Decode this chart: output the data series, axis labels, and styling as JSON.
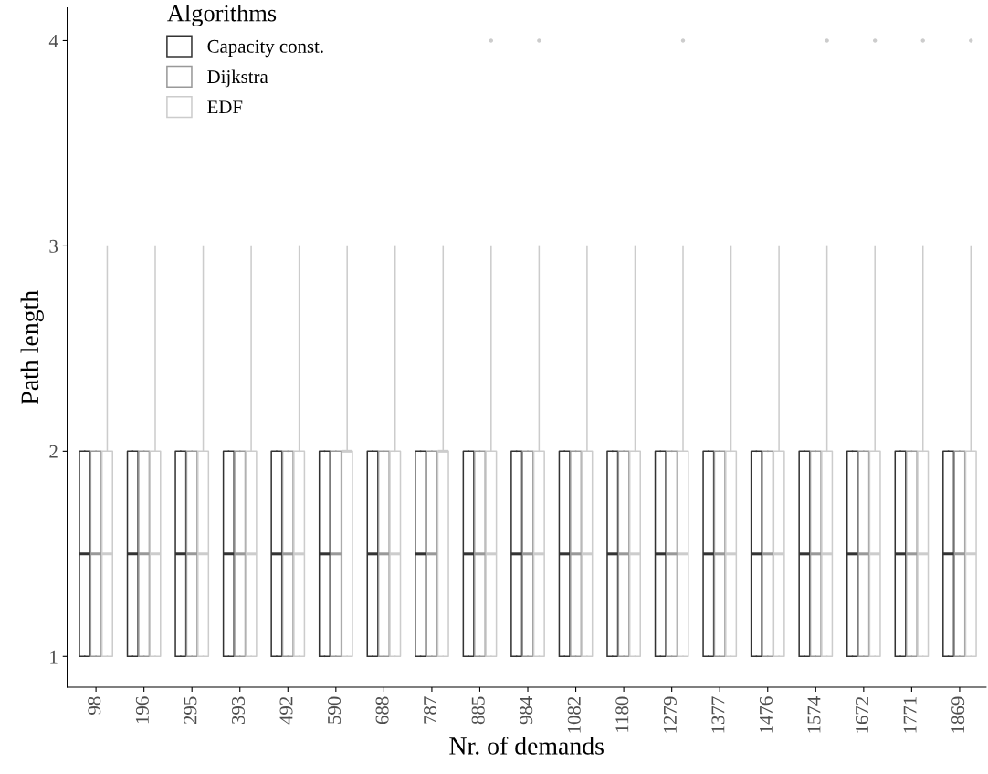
{
  "chart_data": {
    "type": "box",
    "xlabel": "Nr. of demands",
    "ylabel": "Path length",
    "legend_title": "Algorithms",
    "legend": "top left",
    "grid": false,
    "categories": [
      "98",
      "196",
      "295",
      "393",
      "492",
      "590",
      "688",
      "787",
      "885",
      "984",
      "1082",
      "1180",
      "1279",
      "1377",
      "1476",
      "1574",
      "1672",
      "1771",
      "1869"
    ],
    "ylim": [
      0.85,
      4.16
    ],
    "yticks": [
      1,
      2,
      3,
      4
    ],
    "series": [
      {
        "name": "Capacity const.",
        "color": "#333333",
        "boxes": [
          {
            "low": 1,
            "q1": 1,
            "median": 1.5,
            "q3": 2,
            "high": 2
          },
          {
            "low": 1,
            "q1": 1,
            "median": 1.5,
            "q3": 2,
            "high": 2
          },
          {
            "low": 1,
            "q1": 1,
            "median": 1.5,
            "q3": 2,
            "high": 2
          },
          {
            "low": 1,
            "q1": 1,
            "median": 1.5,
            "q3": 2,
            "high": 2
          },
          {
            "low": 1,
            "q1": 1,
            "median": 1.5,
            "q3": 2,
            "high": 2
          },
          {
            "low": 1,
            "q1": 1,
            "median": 1.5,
            "q3": 2,
            "high": 2
          },
          {
            "low": 1,
            "q1": 1,
            "median": 1.5,
            "q3": 2,
            "high": 2
          },
          {
            "low": 1,
            "q1": 1,
            "median": 1.5,
            "q3": 2,
            "high": 2
          },
          {
            "low": 1,
            "q1": 1,
            "median": 1.5,
            "q3": 2,
            "high": 2
          },
          {
            "low": 1,
            "q1": 1,
            "median": 1.5,
            "q3": 2,
            "high": 2
          },
          {
            "low": 1,
            "q1": 1,
            "median": 1.5,
            "q3": 2,
            "high": 2
          },
          {
            "low": 1,
            "q1": 1,
            "median": 1.5,
            "q3": 2,
            "high": 2
          },
          {
            "low": 1,
            "q1": 1,
            "median": 1.5,
            "q3": 2,
            "high": 2
          },
          {
            "low": 1,
            "q1": 1,
            "median": 1.5,
            "q3": 2,
            "high": 2
          },
          {
            "low": 1,
            "q1": 1,
            "median": 1.5,
            "q3": 2,
            "high": 2
          },
          {
            "low": 1,
            "q1": 1,
            "median": 1.5,
            "q3": 2,
            "high": 2
          },
          {
            "low": 1,
            "q1": 1,
            "median": 1.5,
            "q3": 2,
            "high": 2
          },
          {
            "low": 1,
            "q1": 1,
            "median": 1.5,
            "q3": 2,
            "high": 2
          },
          {
            "low": 1,
            "q1": 1,
            "median": 1.5,
            "q3": 2,
            "high": 2
          }
        ]
      },
      {
        "name": "Dijkstra",
        "color": "#999999",
        "boxes": [
          {
            "low": 1,
            "q1": 1,
            "median": 1.5,
            "q3": 2,
            "high": 2
          },
          {
            "low": 1,
            "q1": 1,
            "median": 1.5,
            "q3": 2,
            "high": 2
          },
          {
            "low": 1,
            "q1": 1,
            "median": 1.5,
            "q3": 2,
            "high": 2
          },
          {
            "low": 1,
            "q1": 1,
            "median": 1.5,
            "q3": 2,
            "high": 2
          },
          {
            "low": 1,
            "q1": 1,
            "median": 1.5,
            "q3": 2,
            "high": 2
          },
          {
            "low": 1,
            "q1": 1,
            "median": 1.5,
            "q3": 2,
            "high": 2
          },
          {
            "low": 1,
            "q1": 1,
            "median": 1.5,
            "q3": 2,
            "high": 2
          },
          {
            "low": 1,
            "q1": 1,
            "median": 1.5,
            "q3": 2,
            "high": 2
          },
          {
            "low": 1,
            "q1": 1,
            "median": 1.5,
            "q3": 2,
            "high": 2
          },
          {
            "low": 1,
            "q1": 1,
            "median": 1.5,
            "q3": 2,
            "high": 2
          },
          {
            "low": 1,
            "q1": 1,
            "median": 1.5,
            "q3": 2,
            "high": 2
          },
          {
            "low": 1,
            "q1": 1,
            "median": 1.5,
            "q3": 2,
            "high": 2
          },
          {
            "low": 1,
            "q1": 1,
            "median": 1.5,
            "q3": 2,
            "high": 2
          },
          {
            "low": 1,
            "q1": 1,
            "median": 1.5,
            "q3": 2,
            "high": 2
          },
          {
            "low": 1,
            "q1": 1,
            "median": 1.5,
            "q3": 2,
            "high": 2
          },
          {
            "low": 1,
            "q1": 1,
            "median": 1.5,
            "q3": 2,
            "high": 2
          },
          {
            "low": 1,
            "q1": 1,
            "median": 1.5,
            "q3": 2,
            "high": 2
          },
          {
            "low": 1,
            "q1": 1,
            "median": 1.5,
            "q3": 2,
            "high": 2
          },
          {
            "low": 1,
            "q1": 1,
            "median": 1.5,
            "q3": 2,
            "high": 2
          }
        ]
      },
      {
        "name": "EDF",
        "color": "#cccccc",
        "boxes": [
          {
            "low": 1,
            "q1": 1,
            "median": 1.5,
            "q3": 2,
            "high": 3
          },
          {
            "low": 1,
            "q1": 1,
            "median": 1.5,
            "q3": 2,
            "high": 3
          },
          {
            "low": 1,
            "q1": 1,
            "median": 1.5,
            "q3": 2,
            "high": 3
          },
          {
            "low": 1,
            "q1": 1,
            "median": 1.5,
            "q3": 2,
            "high": 3
          },
          {
            "low": 1,
            "q1": 1,
            "median": 1.5,
            "q3": 2,
            "high": 3
          },
          {
            "low": 1,
            "q1": 1,
            "median": 2,
            "q3": 2,
            "high": 3
          },
          {
            "low": 1,
            "q1": 1,
            "median": 1.5,
            "q3": 2,
            "high": 3
          },
          {
            "low": 1,
            "q1": 1,
            "median": 2,
            "q3": 2,
            "high": 3
          },
          {
            "low": 1,
            "q1": 1,
            "median": 1.5,
            "q3": 2,
            "high": 3,
            "outliers": [
              4
            ]
          },
          {
            "low": 1,
            "q1": 1,
            "median": 1.5,
            "q3": 2,
            "high": 3,
            "outliers": [
              4
            ]
          },
          {
            "low": 1,
            "q1": 1,
            "median": 1.5,
            "q3": 2,
            "high": 3
          },
          {
            "low": 1,
            "q1": 1,
            "median": 1.5,
            "q3": 2,
            "high": 3
          },
          {
            "low": 1,
            "q1": 1,
            "median": 1.5,
            "q3": 2,
            "high": 3,
            "outliers": [
              4
            ]
          },
          {
            "low": 1,
            "q1": 1,
            "median": 1.5,
            "q3": 2,
            "high": 3
          },
          {
            "low": 1,
            "q1": 1,
            "median": 1.5,
            "q3": 2,
            "high": 3
          },
          {
            "low": 1,
            "q1": 1,
            "median": 1.5,
            "q3": 2,
            "high": 3,
            "outliers": [
              4
            ]
          },
          {
            "low": 1,
            "q1": 1,
            "median": 1.5,
            "q3": 2,
            "high": 3,
            "outliers": [
              4
            ]
          },
          {
            "low": 1,
            "q1": 1,
            "median": 1.5,
            "q3": 2,
            "high": 3,
            "outliers": [
              4
            ]
          },
          {
            "low": 1,
            "q1": 1,
            "median": 1.5,
            "q3": 2,
            "high": 3,
            "outliers": [
              4
            ]
          }
        ]
      }
    ]
  }
}
